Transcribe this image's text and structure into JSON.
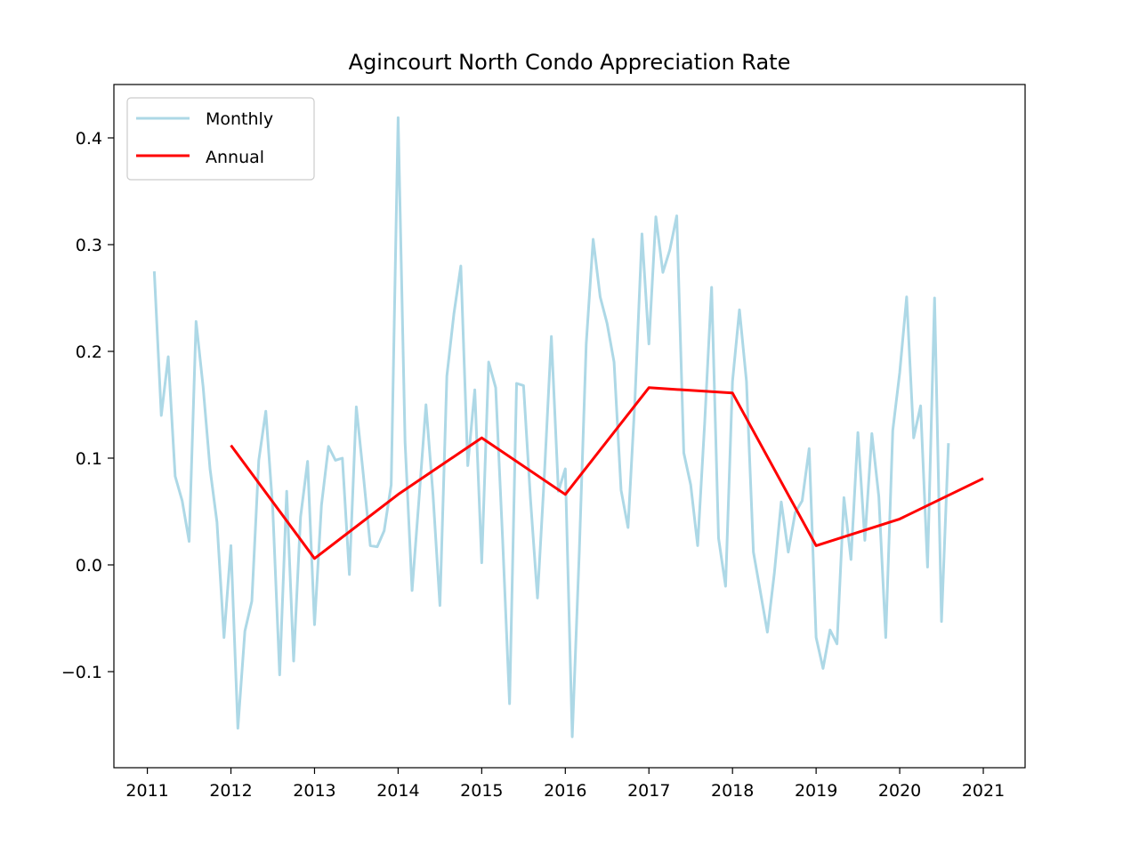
{
  "chart_data": {
    "type": "line",
    "title": "Agincourt North Condo Appreciation Rate",
    "xlabel": "",
    "ylabel": "",
    "xlim": [
      2010.6,
      2021.5
    ],
    "ylim": [
      -0.19,
      0.45
    ],
    "x_ticks": [
      2011,
      2012,
      2013,
      2014,
      2015,
      2016,
      2017,
      2018,
      2019,
      2020,
      2021
    ],
    "x_tick_labels": [
      "2011",
      "2012",
      "2013",
      "2014",
      "2015",
      "2016",
      "2017",
      "2018",
      "2019",
      "2020",
      "2021"
    ],
    "y_ticks": [
      -0.1,
      0.0,
      0.1,
      0.2,
      0.3,
      0.4
    ],
    "y_tick_labels": [
      "−0.1",
      "0.0",
      "0.1",
      "0.2",
      "0.3",
      "0.4"
    ],
    "grid": false,
    "legend_position": "top-left",
    "series": [
      {
        "name": "Monthly",
        "color": "#add8e6",
        "x": [
          2011.083,
          2011.167,
          2011.25,
          2011.333,
          2011.417,
          2011.5,
          2011.583,
          2011.667,
          2011.75,
          2011.833,
          2011.917,
          2012.0,
          2012.083,
          2012.167,
          2012.25,
          2012.333,
          2012.417,
          2012.5,
          2012.583,
          2012.667,
          2012.75,
          2012.833,
          2012.917,
          2013.0,
          2013.083,
          2013.167,
          2013.25,
          2013.333,
          2013.417,
          2013.5,
          2013.583,
          2013.667,
          2013.75,
          2013.833,
          2013.917,
          2014.0,
          2014.083,
          2014.167,
          2014.25,
          2014.333,
          2014.417,
          2014.5,
          2014.583,
          2014.667,
          2014.75,
          2014.833,
          2014.917,
          2015.0,
          2015.083,
          2015.167,
          2015.25,
          2015.333,
          2015.417,
          2015.5,
          2015.583,
          2015.667,
          2015.75,
          2015.833,
          2015.917,
          2016.0,
          2016.083,
          2016.167,
          2016.25,
          2016.333,
          2016.417,
          2016.5,
          2016.583,
          2016.667,
          2016.75,
          2016.833,
          2016.917,
          2017.0,
          2017.083,
          2017.167,
          2017.25,
          2017.333,
          2017.417,
          2017.5,
          2017.583,
          2017.667,
          2017.75,
          2017.833,
          2017.917,
          2018.0,
          2018.083,
          2018.167,
          2018.25,
          2018.333,
          2018.417,
          2018.5,
          2018.583,
          2018.667,
          2018.75,
          2018.833,
          2018.917,
          2019.0,
          2019.083,
          2019.167,
          2019.25,
          2019.333,
          2019.417,
          2019.5,
          2019.583,
          2019.667,
          2019.75,
          2019.833,
          2019.917,
          2020.0,
          2020.083,
          2020.167,
          2020.25,
          2020.333,
          2020.417,
          2020.5,
          2020.583
        ],
        "values": [
          0.275,
          0.14,
          0.195,
          0.083,
          0.06,
          0.022,
          0.228,
          0.167,
          0.09,
          0.04,
          -0.068,
          0.018,
          -0.153,
          -0.062,
          -0.034,
          0.098,
          0.144,
          0.053,
          -0.103,
          0.069,
          -0.09,
          0.045,
          0.097,
          -0.056,
          0.056,
          0.111,
          0.098,
          0.1,
          -0.009,
          0.148,
          0.085,
          0.018,
          0.017,
          0.032,
          0.075,
          0.419,
          0.115,
          -0.024,
          0.062,
          0.15,
          0.066,
          -0.038,
          0.177,
          0.235,
          0.28,
          0.093,
          0.164,
          0.002,
          0.19,
          0.166,
          0.024,
          -0.13,
          0.17,
          0.168,
          0.062,
          -0.031,
          0.085,
          0.214,
          0.069,
          0.09,
          -0.161,
          0.012,
          0.207,
          0.305,
          0.251,
          0.226,
          0.19,
          0.07,
          0.035,
          0.155,
          0.31,
          0.207,
          0.326,
          0.274,
          0.295,
          0.327,
          0.105,
          0.075,
          0.018,
          0.133,
          0.26,
          0.025,
          -0.02,
          0.172,
          0.239,
          0.172,
          0.012,
          -0.025,
          -0.063,
          -0.008,
          0.059,
          0.012,
          0.049,
          0.06,
          0.109,
          -0.068,
          -0.097,
          -0.061,
          -0.074,
          0.063,
          0.005,
          0.124,
          0.023,
          0.123,
          0.064,
          -0.068,
          0.126,
          0.18,
          0.251,
          0.119,
          0.149,
          -0.002,
          0.25,
          -0.053,
          0.114
        ]
      },
      {
        "name": "Annual",
        "color": "#ff0000",
        "x": [
          2012,
          2013,
          2014,
          2015,
          2016,
          2017,
          2018,
          2019,
          2020,
          2021
        ],
        "values": [
          0.112,
          0.006,
          0.066,
          0.119,
          0.066,
          0.166,
          0.161,
          0.018,
          0.043,
          0.081
        ]
      }
    ]
  }
}
